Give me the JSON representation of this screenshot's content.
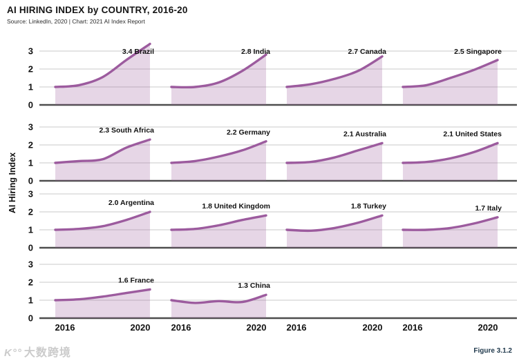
{
  "header": {
    "title": "AI HIRING INDEX by COUNTRY, 2016-20",
    "source": "Source: LinkedIn, 2020 | Chart: 2021 AI Index Report"
  },
  "footer": {
    "figure_label": "Figure 3.1.2",
    "watermark_logo": "K°°",
    "watermark_text": "大数跨境"
  },
  "chart_data": {
    "type": "area",
    "title": "AI HIRING INDEX by COUNTRY, 2016-20",
    "x": [
      2016,
      2017,
      2018,
      2019,
      2020
    ],
    "x_tick_labels": [
      "2016",
      "2020"
    ],
    "ylabel": "AI Hiring Index",
    "yticks": [
      0,
      1,
      2,
      3
    ],
    "ylim": [
      0,
      3.5
    ],
    "grid": true,
    "legend": "none",
    "layout": {
      "rows": 4,
      "cols": 4,
      "order": "row-major"
    },
    "colors": {
      "line": "#9c5b9e",
      "fill": "rgba(154,90,156,0.25)",
      "gridline": "#c8c8c8",
      "axis": "#4d4d4d",
      "text": "#111111",
      "figure_label": "#20394c"
    },
    "series": [
      {
        "name": "Brazil",
        "label": "3.4 Brazil",
        "final": 3.4,
        "values": [
          1.0,
          1.1,
          1.55,
          2.5,
          3.4
        ]
      },
      {
        "name": "India",
        "label": "2.8 India",
        "final": 2.8,
        "values": [
          1.0,
          1.0,
          1.25,
          1.9,
          2.8
        ]
      },
      {
        "name": "Canada",
        "label": "2.7 Canada",
        "final": 2.7,
        "values": [
          1.0,
          1.15,
          1.45,
          1.9,
          2.7
        ]
      },
      {
        "name": "Singapore",
        "label": "2.5 Singapore",
        "final": 2.5,
        "values": [
          1.0,
          1.1,
          1.5,
          1.95,
          2.5
        ]
      },
      {
        "name": "South Africa",
        "label": "2.3 South Africa",
        "final": 2.3,
        "values": [
          1.0,
          1.1,
          1.2,
          1.85,
          2.3
        ]
      },
      {
        "name": "Germany",
        "label": "2.2 Germany",
        "final": 2.2,
        "values": [
          1.0,
          1.1,
          1.35,
          1.7,
          2.2
        ]
      },
      {
        "name": "Australia",
        "label": "2.1 Australia",
        "final": 2.1,
        "values": [
          1.0,
          1.05,
          1.3,
          1.7,
          2.1
        ]
      },
      {
        "name": "United States",
        "label": "2.1 United States",
        "final": 2.1,
        "values": [
          1.0,
          1.05,
          1.25,
          1.6,
          2.1
        ]
      },
      {
        "name": "Argentina",
        "label": "2.0 Argentina",
        "final": 2.0,
        "values": [
          1.0,
          1.05,
          1.2,
          1.55,
          2.0
        ]
      },
      {
        "name": "United Kingdom",
        "label": "1.8 United Kingdom",
        "final": 1.8,
        "values": [
          1.0,
          1.05,
          1.25,
          1.55,
          1.8
        ]
      },
      {
        "name": "Turkey",
        "label": "1.8 Turkey",
        "final": 1.8,
        "values": [
          1.0,
          0.95,
          1.1,
          1.4,
          1.8
        ]
      },
      {
        "name": "Italy",
        "label": "1.7 Italy",
        "final": 1.7,
        "values": [
          1.0,
          1.0,
          1.1,
          1.35,
          1.7
        ]
      },
      {
        "name": "France",
        "label": "1.6 France",
        "final": 1.6,
        "values": [
          1.0,
          1.05,
          1.2,
          1.4,
          1.6
        ]
      },
      {
        "name": "China",
        "label": "1.3 China",
        "final": 1.3,
        "values": [
          1.0,
          0.85,
          0.95,
          0.9,
          1.3
        ]
      }
    ]
  }
}
